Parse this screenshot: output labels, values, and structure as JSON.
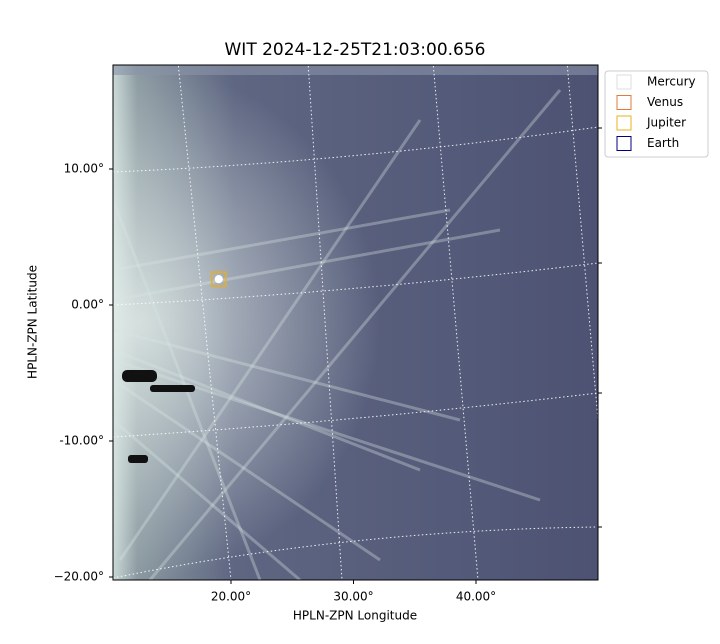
{
  "chart_data": {
    "type": "image",
    "title": "WIT 2024-12-25T21:03:00.656",
    "xlabel": "HPLN-ZPN Longitude",
    "ylabel": "HPLN-ZPN Latitude",
    "xticks": [
      {
        "value": 20,
        "label": "20.00°"
      },
      {
        "value": 30,
        "label": "30.00°"
      },
      {
        "value": 40,
        "label": "40.00°"
      }
    ],
    "yticks": [
      {
        "value": 10,
        "label": "10.00°"
      },
      {
        "value": 0,
        "label": "0.00°"
      },
      {
        "value": -10,
        "label": "-10.00°"
      },
      {
        "value": -20,
        "label": "−20.00°"
      }
    ],
    "series": [
      {
        "name": "Mercury",
        "color": "#dddddd"
      },
      {
        "name": "Venus",
        "color": "#e07b39",
        "x": [
          19.0
        ],
        "values": [
          1.9
        ]
      },
      {
        "name": "Jupiter",
        "color": "#e8b020",
        "x": [
          19.0
        ],
        "values": [
          1.9
        ]
      },
      {
        "name": "Earth",
        "color": "#000080"
      }
    ],
    "legend": "upper right",
    "grid": true
  }
}
